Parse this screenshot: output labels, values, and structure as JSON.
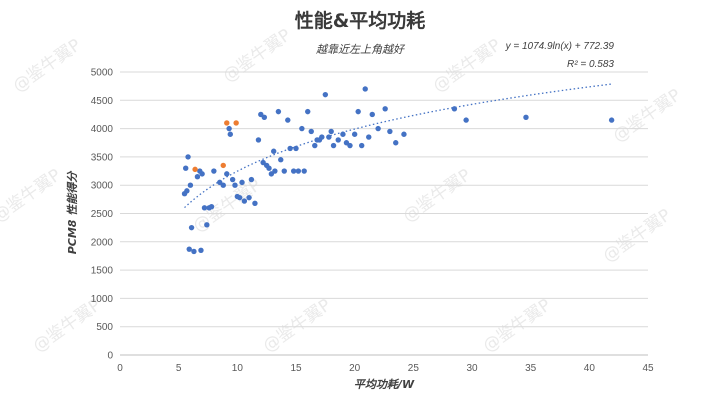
{
  "watermark": "@鉴牛翼P",
  "chart_data": {
    "type": "scatter",
    "title": "性能&平均功耗",
    "subtitle": "越靠近左上角越好",
    "xlabel": "平均功耗/W",
    "ylabel": "PCM8 性能得分",
    "xlim": [
      0,
      45
    ],
    "ylim": [
      0,
      5000
    ],
    "xticks": [
      "0",
      "5",
      "10",
      "15",
      "20",
      "25",
      "30",
      "35",
      "40",
      "45"
    ],
    "yticks": [
      "0",
      "500",
      "1000",
      "1500",
      "2000",
      "2500",
      "3000",
      "3500",
      "4000",
      "4500",
      "5000"
    ],
    "grid": "horizontal",
    "legend": "none",
    "colors": {
      "series_blue": "#4472c4",
      "series_orange": "#ed7d31",
      "trendline": "#4472c4",
      "grid": "#d9d9d9"
    },
    "trendline": {
      "type": "logarithmic",
      "a": 1074.9,
      "b": 772.39,
      "x_range": [
        5.5,
        42
      ],
      "equation": "y = 1074.9ln(x) + 772.39",
      "r2": "R² = 0.583"
    },
    "series": [
      {
        "color": "#4472c4",
        "x": [
          5.5,
          5.6,
          5.7,
          5.8,
          5.9,
          6.0,
          6.1,
          6.3,
          6.6,
          6.8,
          6.9,
          7.0,
          7.2,
          7.4,
          7.6,
          7.8,
          8.0,
          8.5,
          8.8,
          9.1,
          9.3,
          9.4,
          9.6,
          9.8,
          10.0,
          10.2,
          10.4,
          10.6,
          11.0,
          11.2,
          11.5,
          11.8,
          12.0,
          12.2,
          12.3,
          12.5,
          12.7,
          12.9,
          13.1,
          13.2,
          13.5,
          13.7,
          14.0,
          14.3,
          14.5,
          14.8,
          15.0,
          15.2,
          15.5,
          15.7,
          16.0,
          16.3,
          16.6,
          16.8,
          17.0,
          17.2,
          17.5,
          17.8,
          18.0,
          18.2,
          18.6,
          19.0,
          19.3,
          19.6,
          20.0,
          20.3,
          20.6,
          20.9,
          21.2,
          21.5,
          22.0,
          22.6,
          23.0,
          23.5,
          24.2,
          28.5,
          29.5,
          34.6,
          41.9
        ],
        "y": [
          2850,
          3300,
          2900,
          3500,
          1870,
          3000,
          2250,
          1830,
          3150,
          3250,
          1850,
          3200,
          2600,
          2300,
          2600,
          2620,
          3250,
          3050,
          3000,
          3200,
          4000,
          3900,
          3100,
          3000,
          2800,
          2780,
          3050,
          2720,
          2780,
          3100,
          2680,
          3800,
          4250,
          3400,
          4200,
          3350,
          3300,
          3200,
          3600,
          3250,
          4300,
          3450,
          3250,
          4150,
          3650,
          3250,
          3650,
          3250,
          4000,
          3250,
          4300,
          3950,
          3700,
          3800,
          3800,
          3850,
          4600,
          3850,
          3950,
          3700,
          3800,
          3900,
          3750,
          3700,
          3900,
          4300,
          3700,
          4700,
          3850,
          4250,
          4000,
          4350,
          3950,
          3750,
          3900,
          4350,
          4150,
          4200,
          4150
        ]
      },
      {
        "color": "#ed7d31",
        "x": [
          6.4,
          8.8,
          9.1,
          9.9
        ],
        "y": [
          3280,
          3350,
          4100,
          4100
        ]
      }
    ]
  }
}
